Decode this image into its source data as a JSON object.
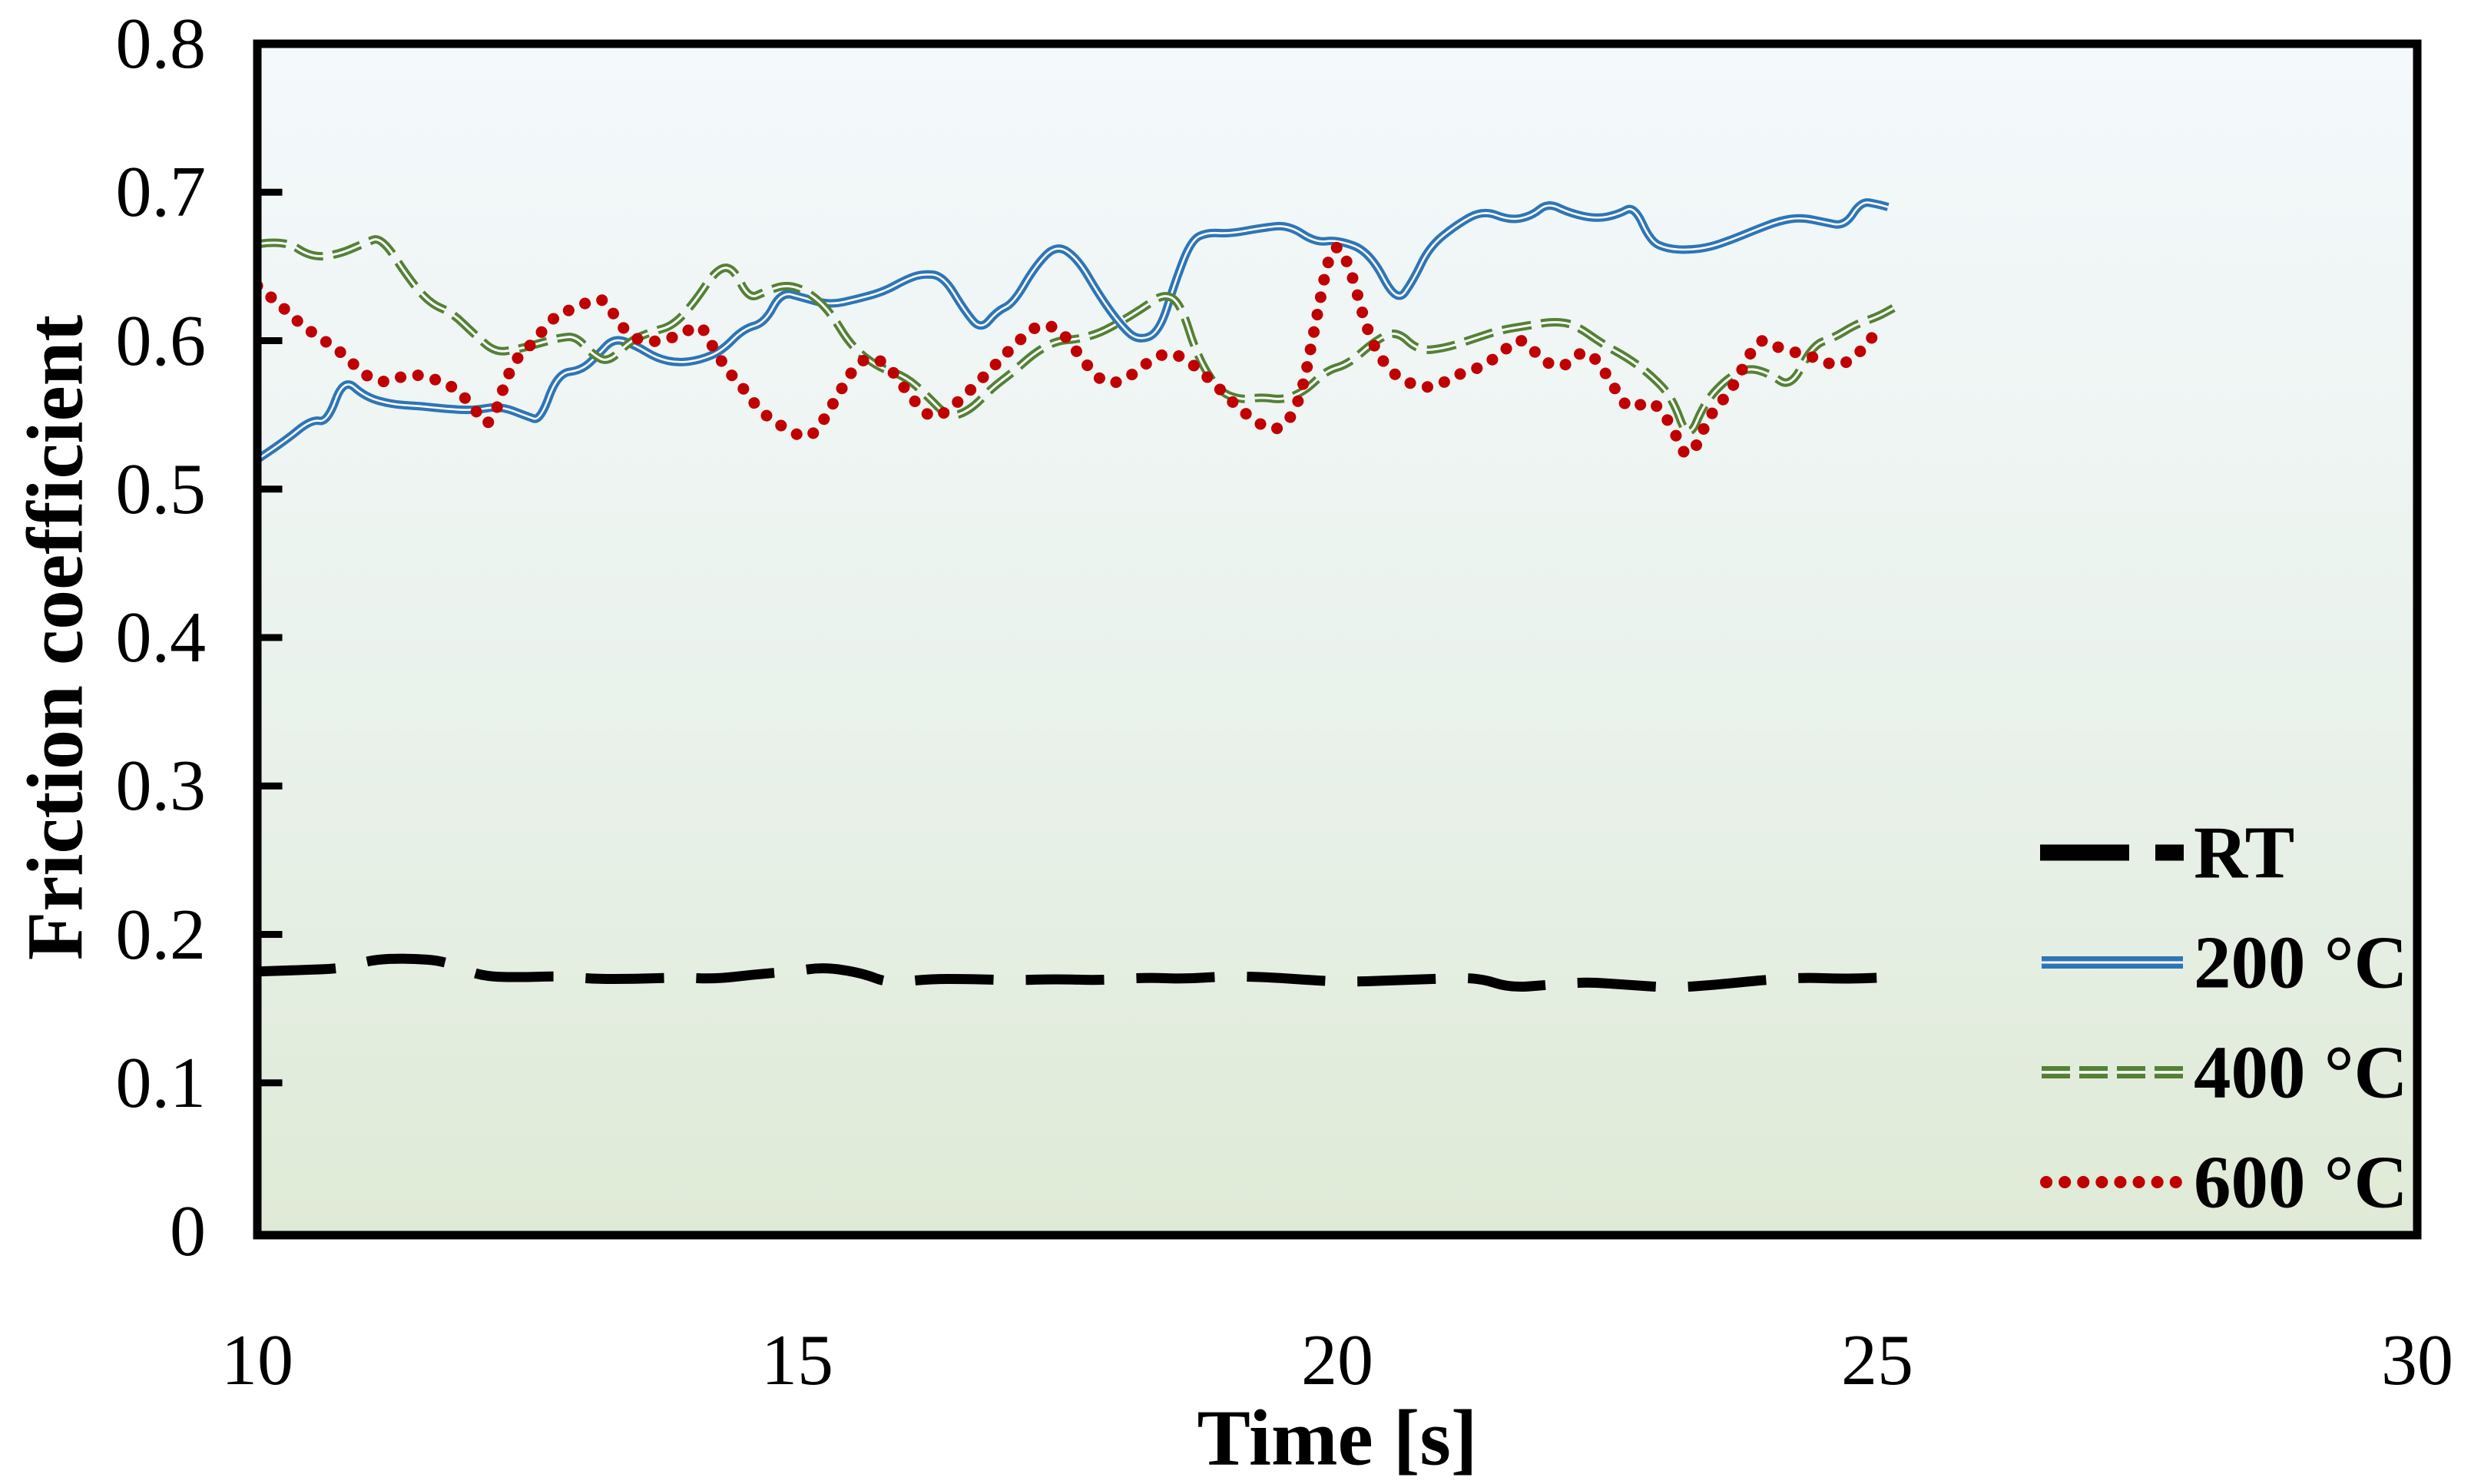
{
  "chart_data": {
    "type": "line",
    "title": "",
    "xlabel": "Time [s]",
    "ylabel": "Friction coefficient",
    "xlim": [
      10,
      30
    ],
    "ylim": [
      0,
      0.8
    ],
    "x_ticks": [
      "10",
      "15",
      "20",
      "25",
      "30"
    ],
    "x_tick_values": [
      10,
      15,
      20,
      25,
      30
    ],
    "y_ticks": [
      "0",
      "0.1",
      "0.2",
      "0.3",
      "0.4",
      "0.5",
      "0.6",
      "0.7",
      "0.8"
    ],
    "y_tick_values": [
      0,
      0.1,
      0.2,
      0.3,
      0.4,
      0.5,
      0.6,
      0.7,
      0.8
    ],
    "grid": false,
    "legend_position": "inside-lower-right",
    "plot_background": {
      "top_color": "#f4f9fc",
      "mid_color": "#eaf2ec",
      "bottom_color": "#dfead6"
    },
    "axis_color": "#000000",
    "series": [
      {
        "name": "RT",
        "color": "#000000",
        "line_style": "long-dash",
        "points": [
          [
            10.0,
            0.175
          ],
          [
            10.4,
            0.176
          ],
          [
            10.8,
            0.177
          ],
          [
            11.05,
            0.183
          ],
          [
            11.4,
            0.184
          ],
          [
            11.75,
            0.182
          ],
          [
            12.05,
            0.172
          ],
          [
            12.4,
            0.171
          ],
          [
            12.8,
            0.172
          ],
          [
            13.1,
            0.17
          ],
          [
            13.5,
            0.17
          ],
          [
            13.9,
            0.171
          ],
          [
            14.25,
            0.17
          ],
          [
            14.6,
            0.173
          ],
          [
            14.95,
            0.175
          ],
          [
            15.25,
            0.178
          ],
          [
            15.6,
            0.174
          ],
          [
            15.85,
            0.167
          ],
          [
            16.2,
            0.17
          ],
          [
            16.6,
            0.17
          ],
          [
            17.0,
            0.169
          ],
          [
            17.4,
            0.17
          ],
          [
            17.8,
            0.169
          ],
          [
            18.2,
            0.171
          ],
          [
            18.6,
            0.17
          ],
          [
            19.0,
            0.172
          ],
          [
            19.4,
            0.171
          ],
          [
            19.8,
            0.169
          ],
          [
            20.1,
            0.168
          ],
          [
            20.5,
            0.169
          ],
          [
            20.9,
            0.17
          ],
          [
            21.3,
            0.171
          ],
          [
            21.6,
            0.164
          ],
          [
            21.95,
            0.166
          ],
          [
            22.3,
            0.168
          ],
          [
            22.7,
            0.166
          ],
          [
            23.1,
            0.164
          ],
          [
            23.5,
            0.166
          ],
          [
            23.9,
            0.169
          ],
          [
            24.3,
            0.171
          ],
          [
            24.7,
            0.17
          ],
          [
            25.1,
            0.171
          ]
        ]
      },
      {
        "name": "200 °C",
        "color": "#2e75b6",
        "line_style": "solid-with-white-core",
        "points": [
          [
            10.0,
            0.52
          ],
          [
            10.25,
            0.532
          ],
          [
            10.5,
            0.547
          ],
          [
            10.65,
            0.545
          ],
          [
            10.8,
            0.575
          ],
          [
            11.0,
            0.562
          ],
          [
            11.25,
            0.557
          ],
          [
            11.5,
            0.556
          ],
          [
            11.75,
            0.554
          ],
          [
            12.0,
            0.553
          ],
          [
            12.25,
            0.556
          ],
          [
            12.5,
            0.549
          ],
          [
            12.62,
            0.546
          ],
          [
            12.78,
            0.578
          ],
          [
            13.0,
            0.58
          ],
          [
            13.15,
            0.59
          ],
          [
            13.3,
            0.602
          ],
          [
            13.5,
            0.597
          ],
          [
            13.7,
            0.588
          ],
          [
            13.9,
            0.585
          ],
          [
            14.1,
            0.587
          ],
          [
            14.3,
            0.593
          ],
          [
            14.5,
            0.608
          ],
          [
            14.7,
            0.612
          ],
          [
            14.85,
            0.633
          ],
          [
            15.05,
            0.629
          ],
          [
            15.3,
            0.624
          ],
          [
            15.55,
            0.628
          ],
          [
            15.8,
            0.633
          ],
          [
            16.0,
            0.641
          ],
          [
            16.15,
            0.645
          ],
          [
            16.35,
            0.644
          ],
          [
            16.55,
            0.62
          ],
          [
            16.7,
            0.607
          ],
          [
            16.85,
            0.62
          ],
          [
            17.0,
            0.625
          ],
          [
            17.2,
            0.65
          ],
          [
            17.4,
            0.665
          ],
          [
            17.6,
            0.655
          ],
          [
            17.8,
            0.63
          ],
          [
            18.0,
            0.61
          ],
          [
            18.15,
            0.6
          ],
          [
            18.35,
            0.605
          ],
          [
            18.5,
            0.64
          ],
          [
            18.65,
            0.668
          ],
          [
            18.8,
            0.673
          ],
          [
            19.0,
            0.672
          ],
          [
            19.3,
            0.676
          ],
          [
            19.55,
            0.678
          ],
          [
            19.8,
            0.666
          ],
          [
            20.0,
            0.668
          ],
          [
            20.3,
            0.66
          ],
          [
            20.55,
            0.625
          ],
          [
            20.7,
            0.64
          ],
          [
            20.85,
            0.663
          ],
          [
            21.1,
            0.678
          ],
          [
            21.35,
            0.688
          ],
          [
            21.6,
            0.681
          ],
          [
            21.8,
            0.684
          ],
          [
            21.95,
            0.693
          ],
          [
            22.15,
            0.686
          ],
          [
            22.4,
            0.682
          ],
          [
            22.6,
            0.685
          ],
          [
            22.75,
            0.691
          ],
          [
            22.9,
            0.667
          ],
          [
            23.05,
            0.662
          ],
          [
            23.25,
            0.661
          ],
          [
            23.45,
            0.663
          ],
          [
            23.65,
            0.668
          ],
          [
            23.85,
            0.674
          ],
          [
            24.1,
            0.681
          ],
          [
            24.3,
            0.683
          ],
          [
            24.5,
            0.68
          ],
          [
            24.7,
            0.677
          ],
          [
            24.85,
            0.694
          ],
          [
            25.0,
            0.692
          ],
          [
            25.1,
            0.69
          ]
        ]
      },
      {
        "name": "400 °C",
        "color": "#538135",
        "line_style": "dash-with-white-core",
        "points": [
          [
            10.0,
            0.665
          ],
          [
            10.25,
            0.668
          ],
          [
            10.5,
            0.656
          ],
          [
            10.75,
            0.658
          ],
          [
            11.0,
            0.666
          ],
          [
            11.15,
            0.67
          ],
          [
            11.4,
            0.642
          ],
          [
            11.6,
            0.625
          ],
          [
            11.8,
            0.619
          ],
          [
            12.0,
            0.605
          ],
          [
            12.2,
            0.592
          ],
          [
            12.4,
            0.594
          ],
          [
            12.6,
            0.598
          ],
          [
            12.8,
            0.602
          ],
          [
            12.95,
            0.603
          ],
          [
            13.1,
            0.591
          ],
          [
            13.25,
            0.585
          ],
          [
            13.45,
            0.6
          ],
          [
            13.65,
            0.606
          ],
          [
            13.85,
            0.61
          ],
          [
            14.05,
            0.626
          ],
          [
            14.25,
            0.648
          ],
          [
            14.4,
            0.65
          ],
          [
            14.55,
            0.628
          ],
          [
            14.7,
            0.633
          ],
          [
            14.9,
            0.638
          ],
          [
            15.1,
            0.633
          ],
          [
            15.3,
            0.62
          ],
          [
            15.5,
            0.596
          ],
          [
            15.75,
            0.582
          ],
          [
            16.0,
            0.576
          ],
          [
            16.2,
            0.563
          ],
          [
            16.4,
            0.548
          ],
          [
            16.6,
            0.553
          ],
          [
            16.8,
            0.568
          ],
          [
            17.0,
            0.579
          ],
          [
            17.2,
            0.592
          ],
          [
            17.4,
            0.6
          ],
          [
            17.6,
            0.601
          ],
          [
            17.8,
            0.605
          ],
          [
            18.0,
            0.613
          ],
          [
            18.2,
            0.622
          ],
          [
            18.4,
            0.632
          ],
          [
            18.55,
            0.625
          ],
          [
            18.7,
            0.59
          ],
          [
            18.9,
            0.566
          ],
          [
            19.1,
            0.56
          ],
          [
            19.3,
            0.562
          ],
          [
            19.5,
            0.56
          ],
          [
            19.7,
            0.566
          ],
          [
            19.9,
            0.58
          ],
          [
            20.1,
            0.584
          ],
          [
            20.35,
            0.6
          ],
          [
            20.55,
            0.607
          ],
          [
            20.75,
            0.593
          ],
          [
            21.0,
            0.595
          ],
          [
            21.25,
            0.601
          ],
          [
            21.5,
            0.607
          ],
          [
            21.75,
            0.61
          ],
          [
            22.0,
            0.613
          ],
          [
            22.2,
            0.611
          ],
          [
            22.45,
            0.598
          ],
          [
            22.7,
            0.588
          ],
          [
            22.9,
            0.577
          ],
          [
            23.1,
            0.562
          ],
          [
            23.25,
            0.532
          ],
          [
            23.4,
            0.558
          ],
          [
            23.6,
            0.574
          ],
          [
            23.8,
            0.582
          ],
          [
            24.0,
            0.578
          ],
          [
            24.2,
            0.568
          ],
          [
            24.4,
            0.597
          ],
          [
            24.6,
            0.602
          ],
          [
            24.8,
            0.611
          ],
          [
            25.0,
            0.616
          ],
          [
            25.15,
            0.622
          ]
        ]
      },
      {
        "name": "600 °C",
        "color": "#c00000",
        "line_style": "dotted",
        "points": [
          [
            10.0,
            0.637
          ],
          [
            10.2,
            0.625
          ],
          [
            10.4,
            0.611
          ],
          [
            10.6,
            0.601
          ],
          [
            10.8,
            0.591
          ],
          [
            11.0,
            0.576
          ],
          [
            11.2,
            0.571
          ],
          [
            11.4,
            0.578
          ],
          [
            11.6,
            0.575
          ],
          [
            11.8,
            0.57
          ],
          [
            12.0,
            0.556
          ],
          [
            12.15,
            0.538
          ],
          [
            12.35,
            0.585
          ],
          [
            12.55,
            0.598
          ],
          [
            12.75,
            0.617
          ],
          [
            12.95,
            0.622
          ],
          [
            13.2,
            0.631
          ],
          [
            13.35,
            0.611
          ],
          [
            13.5,
            0.601
          ],
          [
            13.65,
            0.599
          ],
          [
            13.8,
            0.601
          ],
          [
            13.95,
            0.605
          ],
          [
            14.1,
            0.612
          ],
          [
            14.2,
            0.598
          ],
          [
            14.35,
            0.58
          ],
          [
            14.5,
            0.568
          ],
          [
            14.65,
            0.553
          ],
          [
            14.8,
            0.545
          ],
          [
            15.0,
            0.536
          ],
          [
            15.15,
            0.535
          ],
          [
            15.35,
            0.56
          ],
          [
            15.55,
            0.585
          ],
          [
            15.7,
            0.589
          ],
          [
            15.85,
            0.583
          ],
          [
            16.05,
            0.562
          ],
          [
            16.25,
            0.546
          ],
          [
            16.45,
            0.556
          ],
          [
            16.65,
            0.57
          ],
          [
            16.85,
            0.585
          ],
          [
            17.05,
            0.6
          ],
          [
            17.25,
            0.612
          ],
          [
            17.45,
            0.607
          ],
          [
            17.65,
            0.586
          ],
          [
            17.85,
            0.57
          ],
          [
            18.05,
            0.574
          ],
          [
            18.25,
            0.586
          ],
          [
            18.45,
            0.593
          ],
          [
            18.65,
            0.585
          ],
          [
            18.85,
            0.572
          ],
          [
            19.05,
            0.557
          ],
          [
            19.25,
            0.545
          ],
          [
            19.45,
            0.538
          ],
          [
            19.65,
            0.556
          ],
          [
            19.8,
            0.612
          ],
          [
            19.95,
            0.668
          ],
          [
            20.1,
            0.655
          ],
          [
            20.3,
            0.6
          ],
          [
            20.5,
            0.578
          ],
          [
            20.7,
            0.57
          ],
          [
            20.9,
            0.568
          ],
          [
            21.1,
            0.577
          ],
          [
            21.3,
            0.581
          ],
          [
            21.5,
            0.59
          ],
          [
            21.7,
            0.604
          ],
          [
            21.9,
            0.586
          ],
          [
            22.1,
            0.581
          ],
          [
            22.3,
            0.596
          ],
          [
            22.5,
            0.577
          ],
          [
            22.7,
            0.551
          ],
          [
            22.9,
            0.562
          ],
          [
            23.1,
            0.543
          ],
          [
            23.25,
            0.516
          ],
          [
            23.45,
            0.551
          ],
          [
            23.65,
            0.566
          ],
          [
            23.9,
            0.603
          ],
          [
            24.05,
            0.596
          ],
          [
            24.25,
            0.592
          ],
          [
            24.45,
            0.588
          ],
          [
            24.6,
            0.583
          ],
          [
            24.75,
            0.586
          ],
          [
            24.9,
            0.597
          ],
          [
            25.0,
            0.607
          ]
        ]
      }
    ]
  }
}
